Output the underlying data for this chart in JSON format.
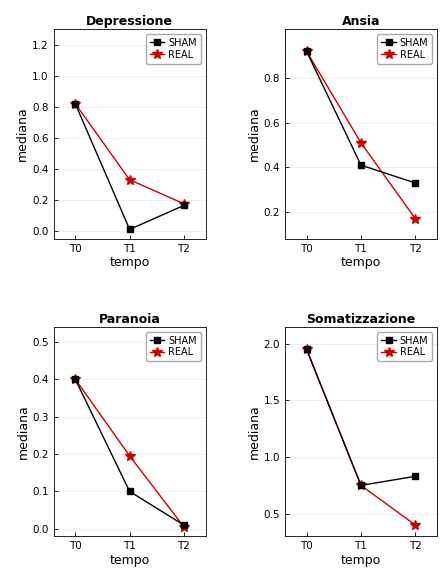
{
  "plots": [
    {
      "title": "Depressione",
      "sham": [
        0.82,
        0.01,
        0.165
      ],
      "real": [
        0.82,
        0.33,
        0.175
      ],
      "ylim": [
        -0.05,
        1.3
      ],
      "yticks": [
        0.0,
        0.2,
        0.4,
        0.6,
        0.8,
        1.0,
        1.2
      ],
      "legend_loc": "upper right",
      "legend_bbox": null
    },
    {
      "title": "Ansia",
      "sham": [
        0.92,
        0.41,
        0.33
      ],
      "real": [
        0.92,
        0.51,
        0.17
      ],
      "ylim": [
        0.08,
        1.02
      ],
      "yticks": [
        0.2,
        0.4,
        0.6,
        0.8
      ],
      "legend_loc": "upper right",
      "legend_bbox": null
    },
    {
      "title": "Paranoia",
      "sham": [
        0.4,
        0.1,
        0.01
      ],
      "real": [
        0.4,
        0.195,
        0.005
      ],
      "ylim": [
        -0.02,
        0.54
      ],
      "yticks": [
        0.0,
        0.1,
        0.2,
        0.3,
        0.4,
        0.5
      ],
      "legend_loc": "upper right",
      "legend_bbox": null
    },
    {
      "title": "Somatizzazione",
      "sham": [
        1.95,
        0.75,
        0.83
      ],
      "real": [
        1.95,
        0.75,
        0.4
      ],
      "ylim": [
        0.3,
        2.15
      ],
      "yticks": [
        0.5,
        1.0,
        1.5,
        2.0
      ],
      "legend_loc": "upper right",
      "legend_bbox": null
    }
  ],
  "xticks": [
    0,
    1,
    2
  ],
  "xticklabels": [
    "T0",
    "T1",
    "T2"
  ],
  "xlabel": "tempo",
  "ylabel": "mediana",
  "sham_color": "#000000",
  "real_color": "#cc0000",
  "sham_marker": "s",
  "real_marker": "*",
  "marker_size_sham": 4,
  "marker_size_real": 7,
  "linewidth": 1.0,
  "bg_color": "#ffffff",
  "plot_bg_color": "#ffffff"
}
